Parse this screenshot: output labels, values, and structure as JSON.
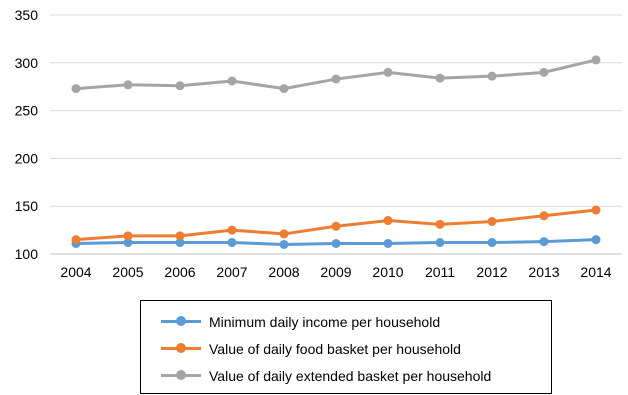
{
  "chart_data": {
    "type": "line",
    "title": "",
    "xlabel": "",
    "ylabel": "",
    "x": [
      "2004",
      "2005",
      "2006",
      "2007",
      "2008",
      "2009",
      "2010",
      "2011",
      "2012",
      "2013",
      "2014"
    ],
    "ylim": [
      100,
      350
    ],
    "yticks": [
      100,
      150,
      200,
      250,
      300,
      350
    ],
    "grid": true,
    "legend_position": "bottom",
    "series": [
      {
        "name": "Minimum daily income per household",
        "color": "#5b9bd5",
        "values": [
          111,
          112,
          112,
          112,
          110,
          111,
          111,
          112,
          112,
          113,
          115
        ]
      },
      {
        "name": "Value of daily food basket per household",
        "color": "#ed7d31",
        "values": [
          115,
          119,
          119,
          125,
          121,
          129,
          135,
          131,
          134,
          140,
          146
        ]
      },
      {
        "name": "Value of daily extended basket per household",
        "color": "#a5a5a5",
        "values": [
          273,
          277,
          276,
          281,
          273,
          283,
          290,
          284,
          286,
          290,
          303
        ]
      }
    ]
  }
}
